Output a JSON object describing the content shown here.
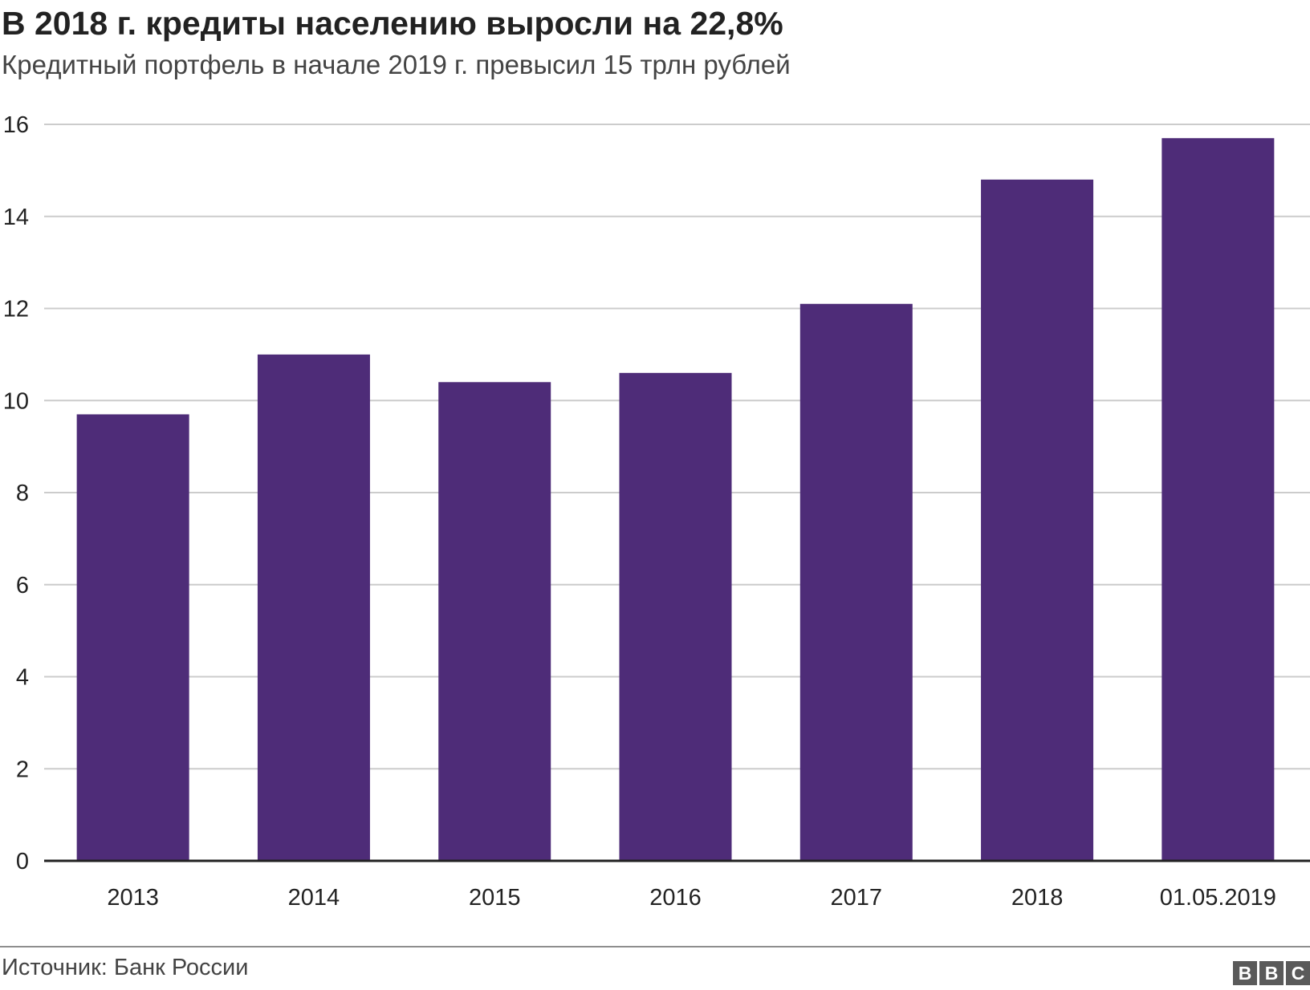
{
  "header": {
    "title": "В 2018 г. кредиты населению выросли на 22,8%",
    "subtitle": "Кредитный портфель в начале 2019 г. превысил 15 трлн рублей"
  },
  "footer": {
    "source": "Источник: Банк России",
    "logo_letters": [
      "B",
      "B",
      "C"
    ]
  },
  "colors": {
    "bar": "#4e2c78",
    "grid": "#cccccc",
    "axis": "#222222",
    "text": "#222222"
  },
  "chart_data": {
    "type": "bar",
    "title": "В 2018 г. кредиты населению выросли на 22,8%",
    "subtitle": "Кредитный портфель в начале 2019 г. превысил 15 трлн рублей",
    "xlabel": "",
    "ylabel": "",
    "categories": [
      "2013",
      "2014",
      "2015",
      "2016",
      "2017",
      "2018",
      "01.05.2019"
    ],
    "values": [
      9.7,
      11.0,
      10.4,
      10.6,
      12.1,
      14.8,
      15.7
    ],
    "ylim": [
      0,
      16
    ],
    "yticks": [
      "0",
      "2",
      "4",
      "6",
      "8",
      "10",
      "12",
      "14",
      "16"
    ],
    "grid": true,
    "legend": "none"
  }
}
